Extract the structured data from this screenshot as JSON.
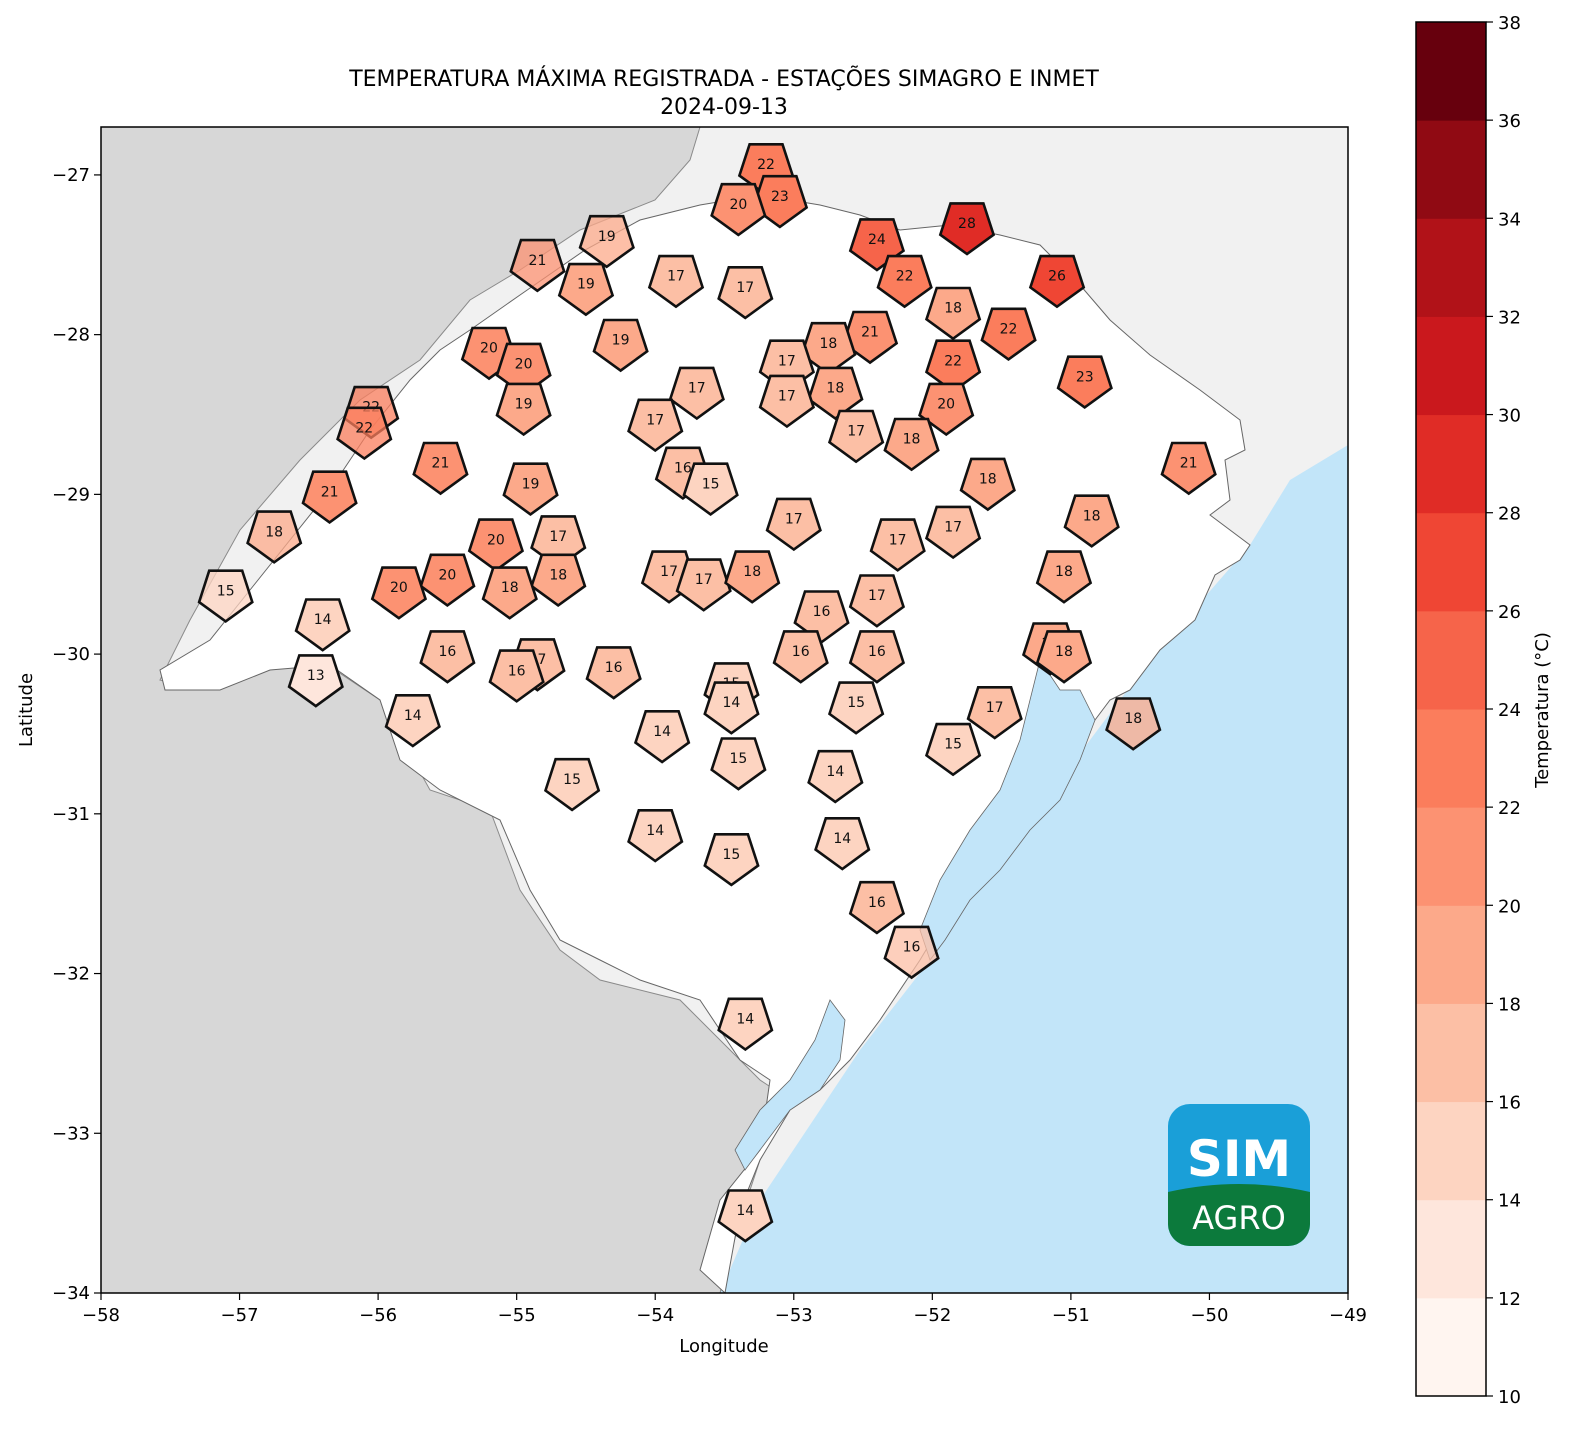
{
  "chart_data": {
    "type": "scatter",
    "title": "TEMPERATURA MÁXIMA REGISTRADA - ESTAÇÕES SIMAGRO E INMET",
    "subtitle": "2024-09-13",
    "xlabel": "Longitude",
    "ylabel": "Latitude",
    "xlim": [
      -58,
      -49
    ],
    "ylim": [
      -34,
      -26.7
    ],
    "xticks": [
      -58,
      -57,
      -56,
      -55,
      -54,
      -53,
      -52,
      -51,
      -50,
      -49
    ],
    "xtick_labels": [
      "−58",
      "−57",
      "−56",
      "−55",
      "−54",
      "−53",
      "−52",
      "−51",
      "−50",
      "−49"
    ],
    "yticks": [
      -27,
      -28,
      -29,
      -30,
      -31,
      -32,
      -33,
      -34
    ],
    "ytick_labels": [
      "−27",
      "−28",
      "−29",
      "−30",
      "−31",
      "−32",
      "−33",
      "−34"
    ],
    "marker": "pentagon",
    "colorbar": {
      "label": "Temperatura (°C)",
      "min": 10,
      "max": 38,
      "step": 2,
      "ticks": [
        10,
        12,
        14,
        16,
        18,
        20,
        22,
        24,
        26,
        28,
        30,
        32,
        34,
        36,
        38
      ],
      "colors": [
        "#fff5f0",
        "#fee6dc",
        "#fdd4c1",
        "#fcbfa5",
        "#fca98a",
        "#fc9272",
        "#fb7d5c",
        "#f6644a",
        "#ef4634",
        "#e02c26",
        "#ca181d",
        "#b11218",
        "#900a13",
        "#67000d"
      ]
    },
    "stations": [
      {
        "lon": -53.2,
        "lat": -26.95,
        "value": 22
      },
      {
        "lon": -53.1,
        "lat": -27.15,
        "value": 23
      },
      {
        "lon": -53.4,
        "lat": -27.2,
        "value": 20
      },
      {
        "lon": -54.35,
        "lat": -27.4,
        "value": 19,
        "faded": true
      },
      {
        "lon": -54.85,
        "lat": -27.55,
        "value": 21,
        "faded": true
      },
      {
        "lon": -54.5,
        "lat": -27.7,
        "value": 19
      },
      {
        "lon": -53.85,
        "lat": -27.65,
        "value": 17
      },
      {
        "lon": -53.35,
        "lat": -27.72,
        "value": 17
      },
      {
        "lon": -52.4,
        "lat": -27.42,
        "value": 24
      },
      {
        "lon": -51.75,
        "lat": -27.32,
        "value": 28
      },
      {
        "lon": -51.1,
        "lat": -27.65,
        "value": 26
      },
      {
        "lon": -52.2,
        "lat": -27.65,
        "value": 22
      },
      {
        "lon": -51.85,
        "lat": -27.85,
        "value": 18
      },
      {
        "lon": -51.45,
        "lat": -27.98,
        "value": 22
      },
      {
        "lon": -52.45,
        "lat": -28.0,
        "value": 21
      },
      {
        "lon": -52.75,
        "lat": -28.07,
        "value": 18
      },
      {
        "lon": -51.85,
        "lat": -28.18,
        "value": 22
      },
      {
        "lon": -53.05,
        "lat": -28.18,
        "value": 17
      },
      {
        "lon": -52.7,
        "lat": -28.35,
        "value": 18
      },
      {
        "lon": -53.05,
        "lat": -28.4,
        "value": 17
      },
      {
        "lon": -51.9,
        "lat": -28.45,
        "value": 20
      },
      {
        "lon": -50.9,
        "lat": -28.28,
        "value": 23
      },
      {
        "lon": -54.25,
        "lat": -28.05,
        "value": 19
      },
      {
        "lon": -55.2,
        "lat": -28.1,
        "value": 20
      },
      {
        "lon": -54.95,
        "lat": -28.2,
        "value": 20
      },
      {
        "lon": -54.95,
        "lat": -28.45,
        "value": 19
      },
      {
        "lon": -53.7,
        "lat": -28.35,
        "value": 17
      },
      {
        "lon": -54.0,
        "lat": -28.55,
        "value": 17
      },
      {
        "lon": -52.55,
        "lat": -28.62,
        "value": 17
      },
      {
        "lon": -52.15,
        "lat": -28.67,
        "value": 18
      },
      {
        "lon": -50.15,
        "lat": -28.82,
        "value": 21
      },
      {
        "lon": -51.6,
        "lat": -28.92,
        "value": 18
      },
      {
        "lon": -50.85,
        "lat": -29.15,
        "value": 18
      },
      {
        "lon": -56.05,
        "lat": -28.47,
        "value": 22,
        "faded": true
      },
      {
        "lon": -56.1,
        "lat": -28.6,
        "value": 22,
        "faded": true
      },
      {
        "lon": -55.55,
        "lat": -28.82,
        "value": 21
      },
      {
        "lon": -56.35,
        "lat": -29.0,
        "value": 21
      },
      {
        "lon": -54.9,
        "lat": -28.95,
        "value": 19
      },
      {
        "lon": -53.8,
        "lat": -28.85,
        "value": 16
      },
      {
        "lon": -53.6,
        "lat": -28.95,
        "value": 15
      },
      {
        "lon": -56.75,
        "lat": -29.25,
        "value": 18,
        "faded": true
      },
      {
        "lon": -55.15,
        "lat": -29.3,
        "value": 20
      },
      {
        "lon": -54.7,
        "lat": -29.28,
        "value": 17
      },
      {
        "lon": -53.0,
        "lat": -29.17,
        "value": 17
      },
      {
        "lon": -52.25,
        "lat": -29.3,
        "value": 17
      },
      {
        "lon": -51.85,
        "lat": -29.22,
        "value": 17
      },
      {
        "lon": -51.05,
        "lat": -29.5,
        "value": 18
      },
      {
        "lon": -55.5,
        "lat": -29.52,
        "value": 20
      },
      {
        "lon": -55.85,
        "lat": -29.6,
        "value": 20
      },
      {
        "lon": -54.7,
        "lat": -29.52,
        "value": 18
      },
      {
        "lon": -55.05,
        "lat": -29.6,
        "value": 18
      },
      {
        "lon": -53.9,
        "lat": -29.5,
        "value": 17
      },
      {
        "lon": -53.65,
        "lat": -29.55,
        "value": 17
      },
      {
        "lon": -53.3,
        "lat": -29.5,
        "value": 18
      },
      {
        "lon": -57.1,
        "lat": -29.62,
        "value": 15,
        "faded": true
      },
      {
        "lon": -52.4,
        "lat": -29.65,
        "value": 17
      },
      {
        "lon": -52.8,
        "lat": -29.75,
        "value": 16
      },
      {
        "lon": -56.4,
        "lat": -29.8,
        "value": 14
      },
      {
        "lon": -51.15,
        "lat": -29.95,
        "value": 19
      },
      {
        "lon": -51.05,
        "lat": -30.0,
        "value": 18
      },
      {
        "lon": -55.5,
        "lat": -30.0,
        "value": 16
      },
      {
        "lon": -54.85,
        "lat": -30.05,
        "value": 17
      },
      {
        "lon": -55.0,
        "lat": -30.12,
        "value": 16
      },
      {
        "lon": -54.3,
        "lat": -30.1,
        "value": 16
      },
      {
        "lon": -52.95,
        "lat": -30.0,
        "value": 16
      },
      {
        "lon": -52.4,
        "lat": -30.0,
        "value": 16
      },
      {
        "lon": -56.45,
        "lat": -30.15,
        "value": 13
      },
      {
        "lon": -53.45,
        "lat": -30.2,
        "value": 15
      },
      {
        "lon": -53.45,
        "lat": -30.32,
        "value": 14
      },
      {
        "lon": -52.55,
        "lat": -30.32,
        "value": 15
      },
      {
        "lon": -51.55,
        "lat": -30.35,
        "value": 17
      },
      {
        "lon": -50.55,
        "lat": -30.42,
        "value": 18,
        "faded": true
      },
      {
        "lon": -55.75,
        "lat": -30.4,
        "value": 14
      },
      {
        "lon": -53.95,
        "lat": -30.5,
        "value": 14
      },
      {
        "lon": -51.85,
        "lat": -30.58,
        "value": 15
      },
      {
        "lon": -53.4,
        "lat": -30.67,
        "value": 15
      },
      {
        "lon": -52.7,
        "lat": -30.75,
        "value": 14
      },
      {
        "lon": -54.6,
        "lat": -30.8,
        "value": 15
      },
      {
        "lon": -54.0,
        "lat": -31.12,
        "value": 14
      },
      {
        "lon": -53.45,
        "lat": -31.27,
        "value": 15
      },
      {
        "lon": -52.65,
        "lat": -31.17,
        "value": 14
      },
      {
        "lon": -52.4,
        "lat": -31.57,
        "value": 16
      },
      {
        "lon": -52.15,
        "lat": -31.85,
        "value": 16,
        "faded": true
      },
      {
        "lon": -53.35,
        "lat": -32.3,
        "value": 14
      },
      {
        "lon": -53.35,
        "lat": -33.5,
        "value": 14
      }
    ]
  },
  "logo": {
    "line1": "SIM",
    "line2": "AGRO",
    "top_color": "#1a9fd8",
    "bottom_color": "#0c7a3c"
  }
}
